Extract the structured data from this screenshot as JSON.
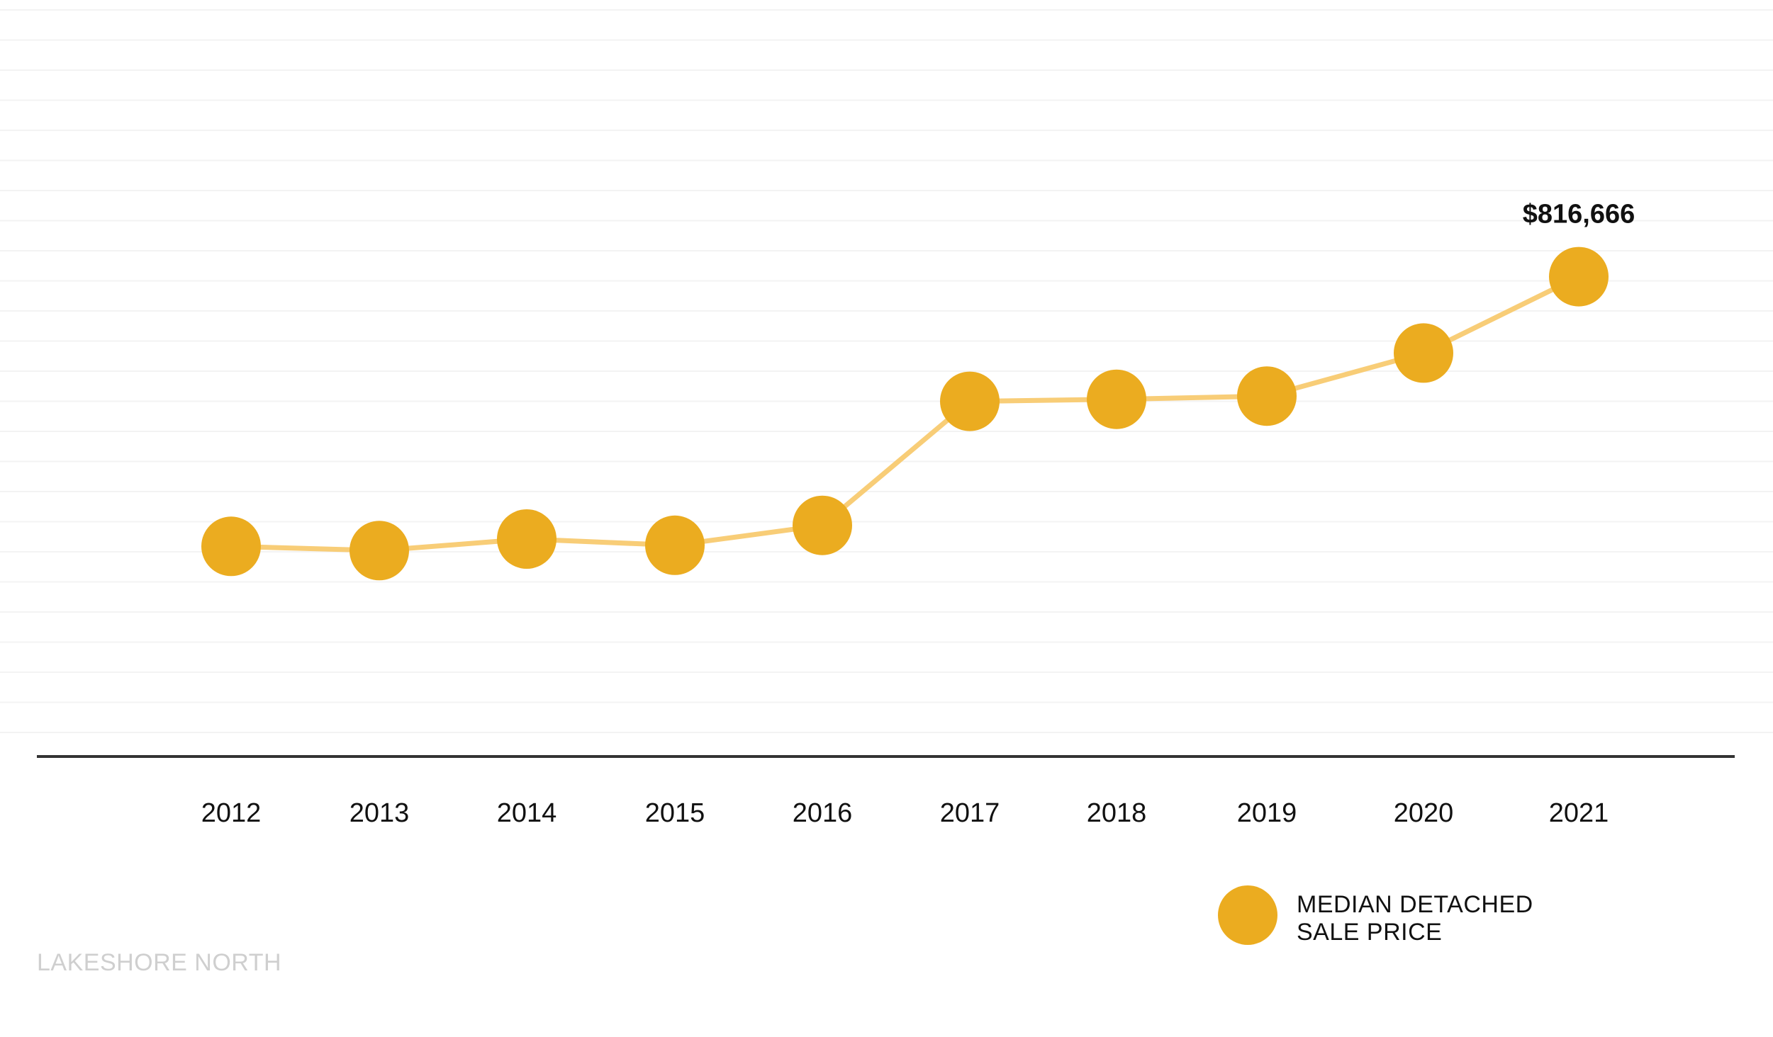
{
  "chart_data": {
    "type": "line",
    "categories": [
      "2012",
      "2013",
      "2014",
      "2015",
      "2016",
      "2017",
      "2018",
      "2019",
      "2020",
      "2021"
    ],
    "series": [
      {
        "name": "MEDIAN DETACHED SALE PRICE",
        "values": [
          560000,
          556000,
          567000,
          561000,
          580000,
          698000,
          700000,
          703000,
          744000,
          816666
        ]
      }
    ],
    "annotations": [
      {
        "category": "2021",
        "text": "$816,666"
      }
    ],
    "ylim": [
      360000,
      1080000
    ],
    "grid": true,
    "legend_lines": [
      "MEDIAN DETACHED",
      "SALE PRICE"
    ],
    "legend_position": "bottom-right",
    "footer": "LAKESHORE NORTH",
    "colors": {
      "line": "#f8cd77",
      "marker": "#ebac20",
      "axis": "#333333",
      "grid": "#f3f3f3",
      "footer": "#cfcfcf"
    }
  }
}
